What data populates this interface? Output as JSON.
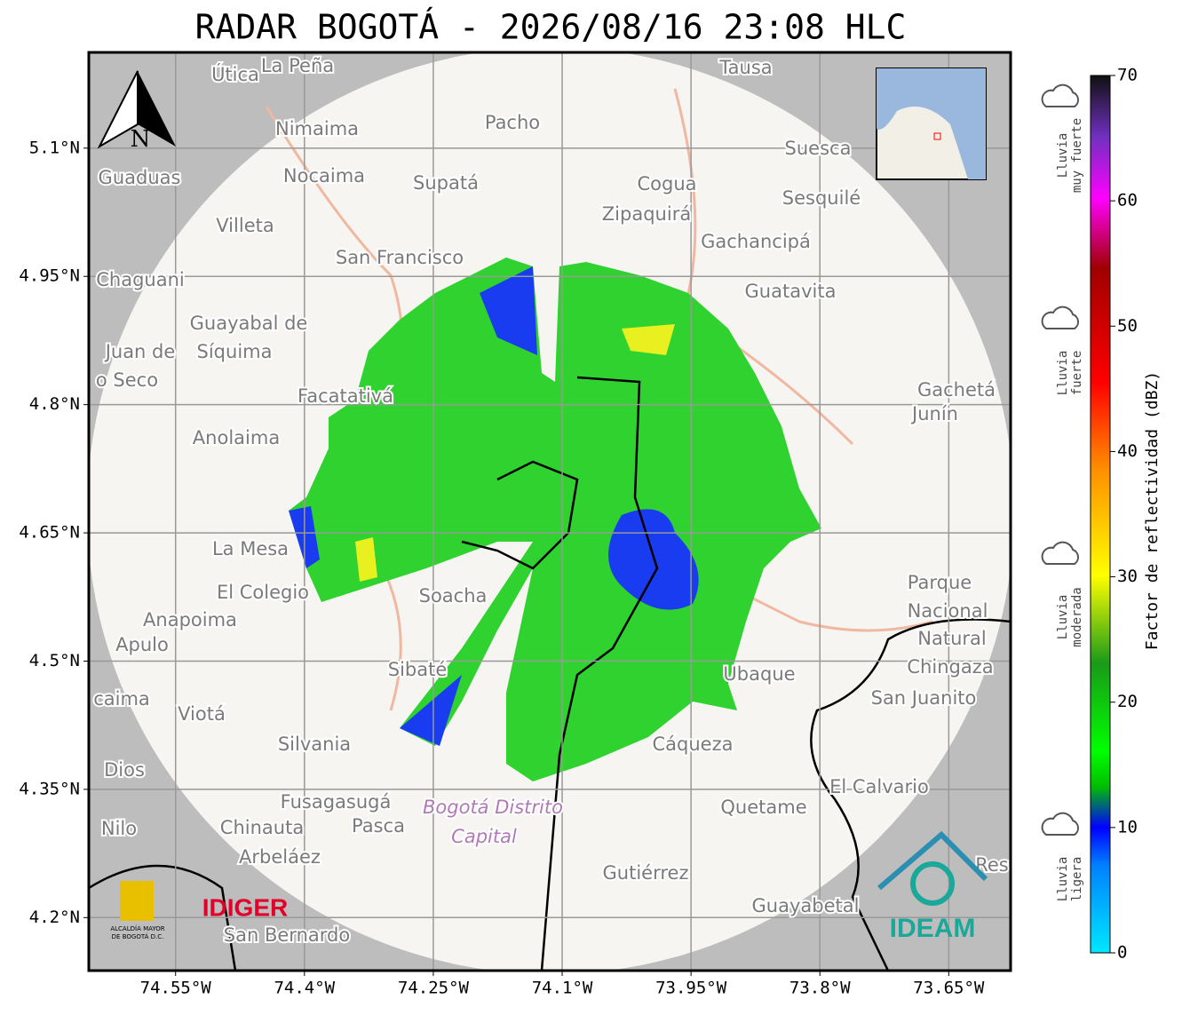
{
  "header": {
    "title": "RADAR BOGOTÁ - 2026/08/16 23:08 HLC"
  },
  "map": {
    "xlim": [
      -74.651,
      -73.578
    ],
    "ylim": [
      4.138,
      5.212
    ],
    "xticks": [
      {
        "value": -74.55,
        "label": "74.55°W"
      },
      {
        "value": -74.4,
        "label": "74.4°W"
      },
      {
        "value": -74.25,
        "label": "74.25°W"
      },
      {
        "value": -74.1,
        "label": "74.1°W"
      },
      {
        "value": -73.95,
        "label": "73.95°W"
      },
      {
        "value": -73.8,
        "label": "73.8°W"
      },
      {
        "value": -73.65,
        "label": "73.65°W"
      }
    ],
    "yticks": [
      {
        "value": 5.1,
        "label": "5.1°N"
      },
      {
        "value": 4.95,
        "label": "4.95°N"
      },
      {
        "value": 4.8,
        "label": "4.8°N"
      },
      {
        "value": 4.65,
        "label": "4.65°N"
      },
      {
        "value": 4.5,
        "label": "4.5°N"
      },
      {
        "value": 4.35,
        "label": "4.35°N"
      },
      {
        "value": 4.2,
        "label": "4.2°N"
      }
    ],
    "north": "N",
    "places": [
      "Útica",
      "La Peña",
      "Tausa",
      "Pacho",
      "Nimaima",
      "Guaduas",
      "Nocaima",
      "Supatá",
      "Cogua",
      "Suesca",
      "Sesquilé",
      "Zipaquirá",
      "Villeta",
      "Gachancipá",
      "San Francisco",
      "Chaguani",
      "Guatavita",
      "Guayabal de",
      "Síquima",
      "Juan de",
      "o Seco",
      "Facatativá",
      "Gachetá",
      "Junín",
      "Anolaima",
      "La Mesa",
      "El Colegio",
      "Soacha",
      "Anapoima",
      "Apulo",
      "Parque",
      "Nacional",
      "Natural",
      "Chingaza",
      "Sibaté",
      "Ubaque",
      "San Juanito",
      "caima",
      "Viotá",
      "Silvania",
      "Cáqueza",
      "Dios",
      "El Calvario",
      "Fusagasugá",
      "Quetame",
      "Nilo",
      "Chinauta",
      "Pasca",
      "Arbeláez",
      "Gutiérrez",
      "Guayabetal",
      "San Bernardo",
      "Res"
    ],
    "capital": [
      "Bogotá Distrito",
      "Capital"
    ],
    "logos": {
      "idiger": "IDIGER",
      "alcaldia": [
        "ALCALDÍA MAYOR",
        "DE BOGOTÁ D.C."
      ],
      "ideam": "IDEAM"
    }
  },
  "colorbar": {
    "label": "Factor de reflectividad (dBZ)",
    "lim": [
      0,
      70
    ],
    "ticks": [
      0,
      10,
      20,
      30,
      40,
      50,
      60,
      70
    ],
    "classes": [
      [
        "Lluvia",
        "muy fuerte"
      ],
      [
        "Lluvia",
        "fuerte"
      ],
      [
        "Lluvia",
        "moderada"
      ],
      [
        "Lluvia",
        "ligera"
      ]
    ]
  }
}
